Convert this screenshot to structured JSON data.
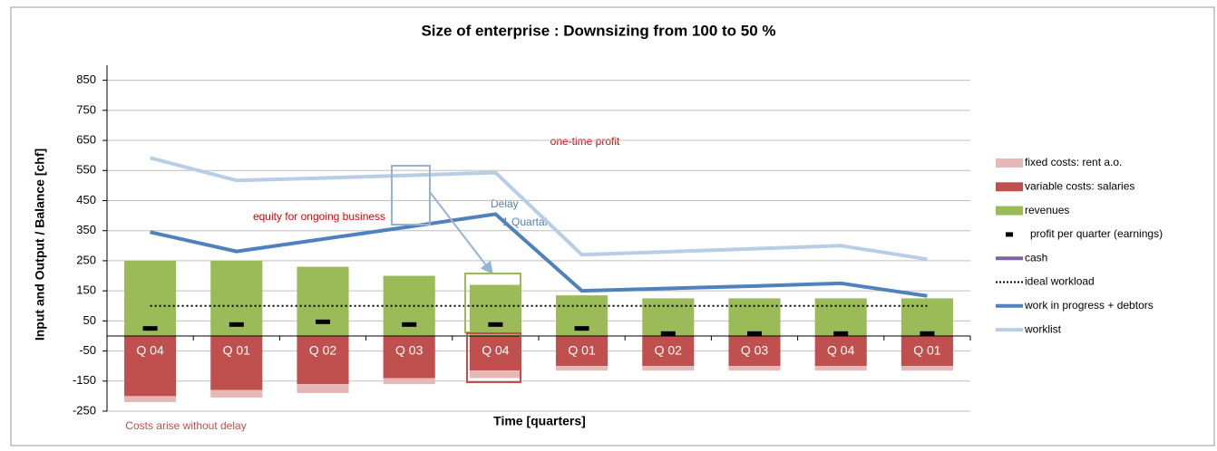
{
  "chart_data": {
    "type": "bar",
    "title": "Size of enterprise : Downsizing from 100 to 50 %",
    "x_label": "Time [quarters]",
    "y_label": "Input and Output / Balance [chf]",
    "annotations": [
      "one-time profit",
      "equity for ongoing business",
      "Delay",
      "1 Quartal",
      "Costs arise without delay"
    ],
    "categories": [
      "Q 04",
      "Q 01",
      "Q 02",
      "Q 03",
      "Q 04",
      "Q 01",
      "Q 02",
      "Q 03",
      "Q 04",
      "Q 01"
    ],
    "ylim": [
      -250,
      900
    ],
    "yticks": [
      -250,
      -150,
      -50,
      50,
      150,
      250,
      350,
      450,
      550,
      650,
      750,
      850
    ],
    "grid": true,
    "legend": "right",
    "series": [
      {
        "name": "fixed costs: rent a.o.",
        "color": "#e6b9b8",
        "style": "bar",
        "stack": "cost",
        "values": [
          -20,
          -25,
          -30,
          -20,
          -25,
          -15,
          -15,
          -15,
          -15,
          -15
        ]
      },
      {
        "name": "variable costs: salaries",
        "color": "#c0504d",
        "style": "bar",
        "stack": "cost",
        "values": [
          -200,
          -180,
          -160,
          -140,
          -115,
          -100,
          -100,
          -100,
          -100,
          -100
        ]
      },
      {
        "name": "revenues",
        "color": "#9bbb59",
        "style": "bar",
        "stack": "rev",
        "values": [
          250,
          250,
          230,
          200,
          170,
          135,
          125,
          125,
          125,
          125
        ]
      },
      {
        "name": "profit per quarter (earnings)",
        "color": "#000000",
        "style": "dash",
        "values": [
          25,
          38,
          47,
          38,
          38,
          25,
          8,
          8,
          8,
          8
        ]
      },
      {
        "name": "cash",
        "color": "#8064a2",
        "style": "line",
        "values": [
          null,
          null,
          null,
          null,
          null,
          null,
          null,
          null,
          null,
          null
        ]
      },
      {
        "name": "ideal workload",
        "color": "#000000",
        "style": "dotted",
        "values": [
          100,
          100,
          100,
          100,
          100,
          100,
          100,
          100,
          100,
          100
        ]
      },
      {
        "name": "work in progress + debtors",
        "color": "#4f81bd",
        "style": "line",
        "values": [
          345,
          281,
          322,
          363,
          405,
          150,
          158,
          166,
          175,
          133
        ]
      },
      {
        "name": "worklist",
        "color": "#b9cde5",
        "style": "line",
        "values": [
          592,
          517,
          525,
          534,
          543,
          270,
          280,
          290,
          300,
          255
        ]
      }
    ]
  }
}
